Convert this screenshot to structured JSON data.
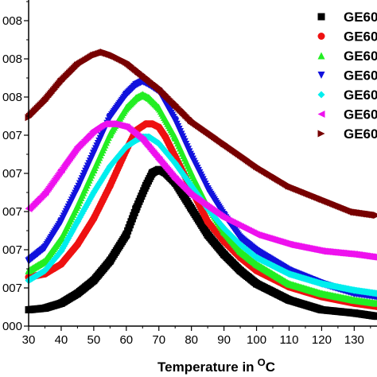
{
  "chart_data": {
    "type": "scatter",
    "title": "",
    "xlabel": "Temperature in",
    "xlabel_sup": "O",
    "xlabel_unit": "C",
    "ylabel": "",
    "xlim": [
      30,
      137
    ],
    "ylim": [
      0,
      1
    ],
    "grid": false,
    "legend_placement": "top-right",
    "x_ticks": [
      30,
      40,
      50,
      60,
      70,
      80,
      90,
      100,
      110,
      120,
      130
    ],
    "y_tick_labels": [
      "000",
      "007",
      "007",
      "007",
      "007",
      "007",
      "008",
      "008",
      "008",
      "008"
    ],
    "series": [
      {
        "name": "GE60",
        "marker": "square",
        "color": "#000000",
        "x": [
          30,
          35,
          40,
          45,
          50,
          55,
          60,
          63,
          66,
          68,
          70,
          72,
          75,
          80,
          85,
          90,
          95,
          100,
          110,
          120,
          130,
          137
        ],
        "y": [
          0.05,
          0.055,
          0.07,
          0.1,
          0.14,
          0.2,
          0.28,
          0.36,
          0.43,
          0.47,
          0.48,
          0.47,
          0.44,
          0.36,
          0.28,
          0.22,
          0.17,
          0.13,
          0.08,
          0.05,
          0.04,
          0.03
        ]
      },
      {
        "name": "GE60",
        "marker": "circle",
        "color": "#ee1111",
        "x": [
          30,
          35,
          40,
          45,
          50,
          55,
          60,
          63,
          66,
          68,
          70,
          72,
          75,
          80,
          85,
          90,
          95,
          100,
          110,
          120,
          130,
          137
        ],
        "y": [
          0.15,
          0.16,
          0.19,
          0.25,
          0.33,
          0.43,
          0.54,
          0.6,
          0.62,
          0.62,
          0.61,
          0.58,
          0.52,
          0.42,
          0.32,
          0.26,
          0.21,
          0.17,
          0.12,
          0.09,
          0.07,
          0.06
        ]
      },
      {
        "name": "GE60",
        "marker": "triangle-up",
        "color": "#22ee22",
        "x": [
          30,
          35,
          40,
          45,
          50,
          55,
          60,
          63,
          65,
          67,
          70,
          75,
          80,
          85,
          90,
          95,
          100,
          110,
          120,
          130,
          137
        ],
        "y": [
          0.17,
          0.2,
          0.27,
          0.37,
          0.48,
          0.59,
          0.67,
          0.7,
          0.71,
          0.7,
          0.67,
          0.58,
          0.47,
          0.37,
          0.29,
          0.23,
          0.19,
          0.13,
          0.1,
          0.08,
          0.07
        ]
      },
      {
        "name": "GE60",
        "marker": "triangle-down",
        "color": "#1111dd",
        "x": [
          30,
          35,
          40,
          45,
          50,
          55,
          60,
          63,
          65,
          67,
          70,
          75,
          80,
          85,
          90,
          95,
          100,
          110,
          120,
          130,
          137
        ],
        "y": [
          0.2,
          0.24,
          0.32,
          0.42,
          0.53,
          0.64,
          0.71,
          0.74,
          0.75,
          0.74,
          0.72,
          0.63,
          0.52,
          0.42,
          0.34,
          0.27,
          0.23,
          0.17,
          0.13,
          0.1,
          0.09
        ]
      },
      {
        "name": "GE60",
        "marker": "diamond",
        "color": "#00eeee",
        "x": [
          30,
          35,
          40,
          45,
          50,
          55,
          60,
          63,
          65,
          67,
          70,
          75,
          80,
          85,
          90,
          95,
          100,
          110,
          120,
          130,
          137
        ],
        "y": [
          0.14,
          0.17,
          0.23,
          0.32,
          0.41,
          0.49,
          0.55,
          0.57,
          0.58,
          0.58,
          0.56,
          0.5,
          0.43,
          0.36,
          0.3,
          0.25,
          0.21,
          0.16,
          0.13,
          0.11,
          0.1
        ]
      },
      {
        "name": "GE60",
        "marker": "triangle-left",
        "color": "#ee11ee",
        "x": [
          30,
          35,
          40,
          45,
          50,
          53,
          56,
          60,
          65,
          70,
          75,
          80,
          90,
          100,
          110,
          120,
          130,
          137
        ],
        "y": [
          0.36,
          0.41,
          0.48,
          0.55,
          0.6,
          0.62,
          0.62,
          0.61,
          0.57,
          0.51,
          0.45,
          0.4,
          0.33,
          0.28,
          0.25,
          0.23,
          0.22,
          0.21
        ]
      },
      {
        "name": "GE60",
        "marker": "triangle-right",
        "color": "#770000",
        "x": [
          30,
          35,
          40,
          45,
          50,
          53,
          56,
          60,
          65,
          70,
          75,
          80,
          90,
          100,
          110,
          120,
          130,
          137
        ],
        "y": [
          0.64,
          0.69,
          0.75,
          0.8,
          0.83,
          0.84,
          0.83,
          0.81,
          0.77,
          0.73,
          0.68,
          0.63,
          0.56,
          0.49,
          0.43,
          0.39,
          0.35,
          0.34
        ]
      }
    ]
  }
}
